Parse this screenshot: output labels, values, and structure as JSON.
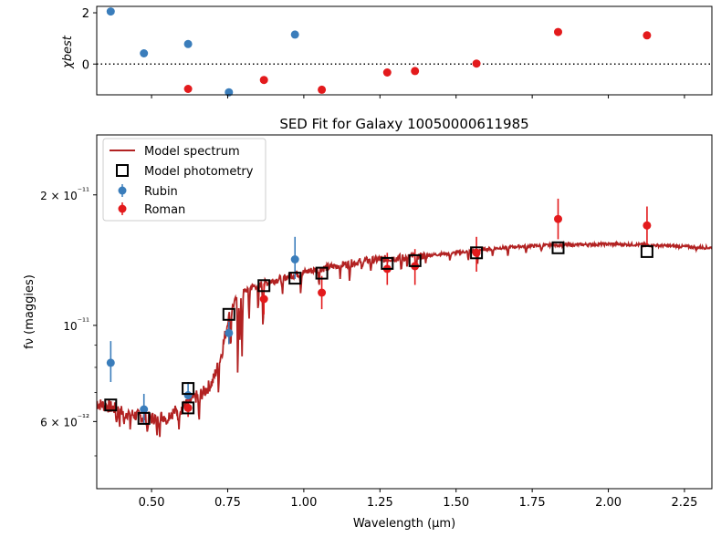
{
  "figure": {
    "title": "SED Fit for Galaxy 10050000611985",
    "xlabel": "Wavelength (μm)",
    "ylabel_main": "fν (maggies)",
    "ylabel_resid": "χbest"
  },
  "colors": {
    "rubin": "#3a7dbb",
    "roman": "#e31a1c",
    "model": "#b22222",
    "box": "#000000"
  },
  "chart_data": [
    {
      "type": "scatter",
      "panel": "residuals",
      "ylabel": "χbest",
      "xlim": [
        0.32,
        2.34
      ],
      "ylim": [
        -1.2,
        2.25
      ],
      "yticks": [
        {
          "v": 0,
          "label": "0"
        },
        {
          "v": 2,
          "label": "2"
        }
      ],
      "reference_line": {
        "y": 0,
        "style": "dotted"
      },
      "series": [
        {
          "name": "Rubin",
          "color_key": "rubin",
          "points": [
            [
              0.366,
              2.05
            ],
            [
              0.475,
              0.42
            ],
            [
              0.62,
              0.78
            ],
            [
              0.754,
              -1.1
            ],
            [
              0.971,
              1.15
            ]
          ]
        },
        {
          "name": "Roman",
          "color_key": "roman",
          "points": [
            [
              0.62,
              -0.97
            ],
            [
              0.869,
              -0.62
            ],
            [
              1.059,
              -1.0
            ],
            [
              1.274,
              -0.33
            ],
            [
              1.365,
              -0.27
            ],
            [
              1.567,
              0.02
            ],
            [
              1.835,
              1.25
            ],
            [
              2.127,
              1.12
            ]
          ]
        }
      ]
    },
    {
      "type": "line",
      "panel": "main",
      "title": "SED Fit for Galaxy 10050000611985",
      "xlabel": "Wavelength (μm)",
      "ylabel": "fν (maggies)",
      "yscale": "log",
      "xlim": [
        0.32,
        2.34
      ],
      "ylim": [
        4.2e-12,
        2.75e-11
      ],
      "xticks": [
        0.5,
        0.75,
        1.0,
        1.25,
        1.5,
        1.75,
        2.0,
        2.25
      ],
      "xtick_labels": [
        "0.50",
        "0.75",
        "1.00",
        "1.25",
        "1.50",
        "1.75",
        "2.00",
        "2.25"
      ],
      "yticks_major": [
        {
          "v": 6e-12,
          "label": "6 × 10⁻¹²"
        },
        {
          "v": 1e-11,
          "label": "10⁻¹¹"
        },
        {
          "v": 2e-11,
          "label": "2 × 10⁻¹¹"
        }
      ],
      "yticks_minor": [
        5e-12,
        7e-12,
        8e-12,
        9e-12
      ],
      "legend_position": "top-left",
      "legend": [
        "Model spectrum",
        "Model photometry",
        "Rubin",
        "Roman"
      ],
      "model_spectrum": {
        "name": "Model spectrum",
        "color_key": "model",
        "continuum": [
          [
            0.32,
            6.6e-12
          ],
          [
            0.36,
            6.5e-12
          ],
          [
            0.4,
            6.35e-12
          ],
          [
            0.45,
            6.2e-12
          ],
          [
            0.5,
            6.1e-12
          ],
          [
            0.55,
            6.2e-12
          ],
          [
            0.6,
            6.45e-12
          ],
          [
            0.64,
            6.8e-12
          ],
          [
            0.67,
            7e-12
          ],
          [
            0.7,
            7.4e-12
          ],
          [
            0.73,
            8.6e-12
          ],
          [
            0.755,
            1.06e-11
          ],
          [
            0.78,
            1.16e-11
          ],
          [
            0.82,
            1.22e-11
          ],
          [
            0.87,
            1.25e-11
          ],
          [
            0.92,
            1.28e-11
          ],
          [
            0.97,
            1.31e-11
          ],
          [
            1.03,
            1.34e-11
          ],
          [
            1.1,
            1.37e-11
          ],
          [
            1.2,
            1.41e-11
          ],
          [
            1.3,
            1.43e-11
          ],
          [
            1.4,
            1.45e-11
          ],
          [
            1.5,
            1.47e-11
          ],
          [
            1.6,
            1.5e-11
          ],
          [
            1.7,
            1.52e-11
          ],
          [
            1.8,
            1.53e-11
          ],
          [
            1.9,
            1.535e-11
          ],
          [
            2.0,
            1.54e-11
          ],
          [
            2.1,
            1.535e-11
          ],
          [
            2.2,
            1.525e-11
          ],
          [
            2.34,
            1.51e-11
          ]
        ],
        "absorption_lines": [
          [
            0.385,
            0.93
          ],
          [
            0.395,
            0.94
          ],
          [
            0.41,
            0.92
          ],
          [
            0.43,
            0.93
          ],
          [
            0.486,
            0.92
          ],
          [
            0.517,
            0.91
          ],
          [
            0.527,
            0.93
          ],
          [
            0.55,
            0.95
          ],
          [
            0.589,
            0.91
          ],
          [
            0.656,
            0.85
          ],
          [
            0.72,
            0.88
          ],
          [
            0.76,
            0.82
          ],
          [
            0.783,
            0.66
          ],
          [
            0.79,
            0.78
          ],
          [
            0.797,
            0.72
          ],
          [
            0.82,
            0.85
          ],
          [
            0.85,
            0.86
          ],
          [
            0.866,
            0.8
          ],
          [
            0.93,
            0.9
          ],
          [
            0.99,
            0.91
          ],
          [
            1.05,
            0.93
          ],
          [
            1.12,
            0.94
          ],
          [
            1.15,
            0.93
          ],
          [
            1.19,
            0.95
          ],
          [
            1.22,
            0.95
          ],
          [
            1.32,
            0.93
          ],
          [
            1.34,
            0.95
          ],
          [
            1.37,
            0.92
          ],
          [
            1.4,
            0.96
          ],
          [
            1.48,
            0.96
          ],
          [
            1.54,
            0.95
          ],
          [
            1.57,
            0.92
          ],
          [
            1.62,
            0.96
          ],
          [
            1.67,
            0.95
          ],
          [
            1.73,
            0.96
          ],
          [
            1.78,
            0.97
          ],
          [
            2.29,
            0.985
          ]
        ]
      },
      "model_photometry": {
        "name": "Model photometry",
        "points": [
          [
            0.366,
            6.55e-12
          ],
          [
            0.475,
            6.1e-12
          ],
          [
            0.62,
            7.15e-12
          ],
          [
            0.62,
            6.45e-12
          ],
          [
            0.754,
            1.06e-11
          ],
          [
            0.869,
            1.235e-11
          ],
          [
            0.971,
            1.285e-11
          ],
          [
            1.059,
            1.32e-11
          ],
          [
            1.274,
            1.39e-11
          ],
          [
            1.365,
            1.41e-11
          ],
          [
            1.567,
            1.47e-11
          ],
          [
            1.835,
            1.51e-11
          ],
          [
            2.127,
            1.48e-11
          ]
        ]
      },
      "observed": [
        {
          "name": "Rubin",
          "color_key": "rubin",
          "points": [
            {
              "x": 0.366,
              "y": 8.2e-12,
              "err_lo": 7.4e-12,
              "err_hi": 9.2e-12
            },
            {
              "x": 0.475,
              "y": 6.4e-12,
              "err_lo": 5.9e-12,
              "err_hi": 6.95e-12
            },
            {
              "x": 0.62,
              "y": 6.9e-12,
              "err_lo": 6.35e-12,
              "err_hi": 7.4e-12
            },
            {
              "x": 0.754,
              "y": 9.6e-12,
              "err_lo": 9.05e-12,
              "err_hi": 1.02e-11
            },
            {
              "x": 0.971,
              "y": 1.42e-11,
              "err_lo": 1.28e-11,
              "err_hi": 1.6e-11
            }
          ]
        },
        {
          "name": "Roman",
          "color_key": "roman",
          "points": [
            {
              "x": 0.62,
              "y": 6.45e-12,
              "err_lo": 6.15e-12,
              "err_hi": 6.75e-12
            },
            {
              "x": 0.869,
              "y": 1.15e-11,
              "err_lo": 1.06e-11,
              "err_hi": 1.25e-11
            },
            {
              "x": 1.059,
              "y": 1.19e-11,
              "err_lo": 1.09e-11,
              "err_hi": 1.3e-11
            },
            {
              "x": 1.274,
              "y": 1.35e-11,
              "err_lo": 1.24e-11,
              "err_hi": 1.47e-11
            },
            {
              "x": 1.365,
              "y": 1.37e-11,
              "err_lo": 1.24e-11,
              "err_hi": 1.5e-11
            },
            {
              "x": 1.567,
              "y": 1.47e-11,
              "err_lo": 1.33e-11,
              "err_hi": 1.6e-11
            },
            {
              "x": 1.835,
              "y": 1.76e-11,
              "err_lo": 1.58e-11,
              "err_hi": 1.96e-11
            },
            {
              "x": 2.127,
              "y": 1.7e-11,
              "err_lo": 1.53e-11,
              "err_hi": 1.88e-11
            }
          ]
        }
      ]
    }
  ]
}
